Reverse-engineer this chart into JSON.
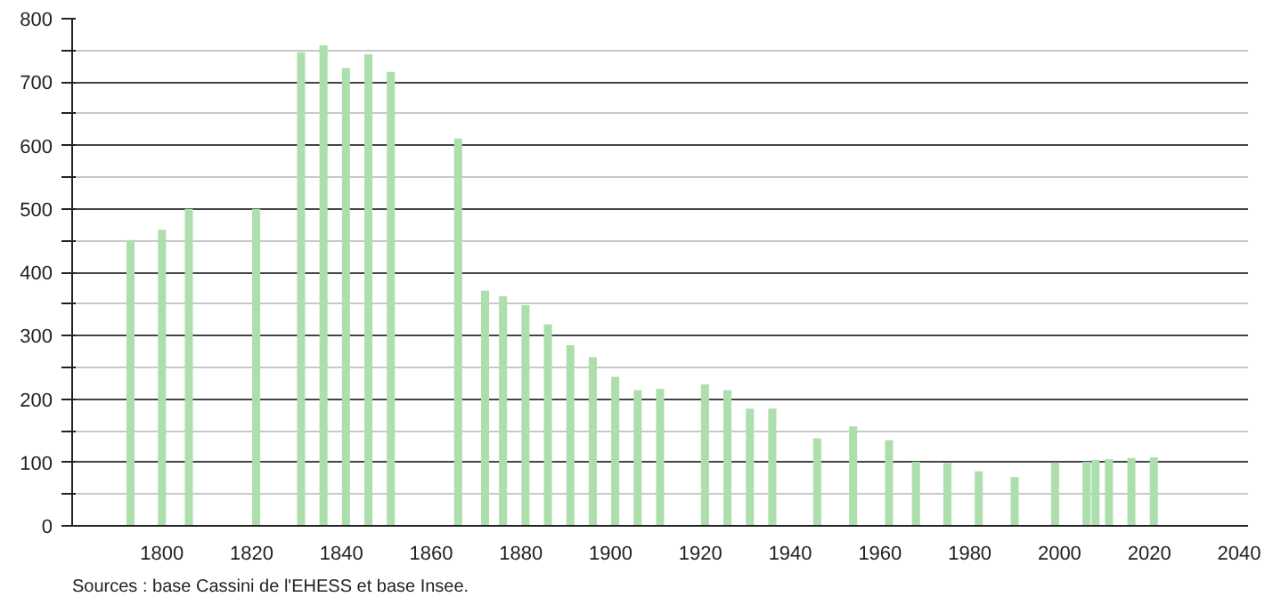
{
  "chart_data": {
    "type": "bar",
    "x": [
      1793,
      1800,
      1806,
      1821,
      1831,
      1836,
      1841,
      1846,
      1851,
      1866,
      1872,
      1876,
      1881,
      1886,
      1891,
      1896,
      1901,
      1906,
      1911,
      1921,
      1926,
      1931,
      1936,
      1946,
      1954,
      1962,
      1968,
      1975,
      1982,
      1990,
      1999,
      2006,
      2008,
      2011,
      2016,
      2021
    ],
    "values": [
      451,
      467,
      500,
      500,
      747,
      758,
      722,
      744,
      716,
      611,
      371,
      362,
      348,
      318,
      285,
      266,
      235,
      214,
      216,
      223,
      214,
      185,
      185,
      138,
      157,
      135,
      101,
      99,
      86,
      77,
      100,
      101,
      104,
      105,
      107,
      108
    ],
    "color": "#addfad",
    "xlim": [
      1780,
      2042
    ],
    "xticks": [
      1800,
      1820,
      1840,
      1860,
      1880,
      1900,
      1920,
      1940,
      1960,
      1980,
      2000,
      2020,
      2040
    ],
    "ylim": [
      0,
      800
    ],
    "yticks": [
      0,
      {
        "value": 50,
        "label": null
      },
      100,
      {
        "value": 150,
        "label": null
      },
      200,
      {
        "value": 250,
        "label": null
      },
      300,
      {
        "value": 350,
        "label": null
      },
      400,
      {
        "value": 450,
        "label": null
      },
      500,
      {
        "value": 550,
        "label": null
      },
      600,
      {
        "value": 650,
        "label": null
      },
      700,
      {
        "value": 750,
        "label": null
      },
      800
    ],
    "grid": "y",
    "annotations": [
      "Sources : base Cassini de l'EHESS et base Insee."
    ]
  }
}
